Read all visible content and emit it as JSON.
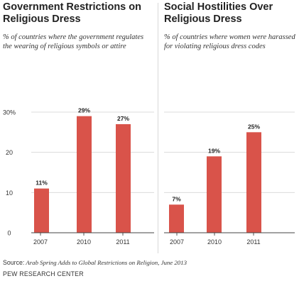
{
  "chart_data": [
    {
      "type": "bar",
      "title": "Government Restrictions on Religious Dress",
      "subtitle": "% of countries where the government regulates the wearing of religious symbols or attire",
      "categories": [
        "2007",
        "2010",
        "2011"
      ],
      "values": [
        11,
        29,
        27
      ],
      "value_labels": [
        "11%",
        "29%",
        "27%"
      ],
      "ylim": [
        0,
        30
      ],
      "yticks": [
        0,
        10,
        20,
        30
      ],
      "ytick_labels": [
        "0",
        "10",
        "20",
        "30%"
      ],
      "grid": true,
      "bar_color": "#d9534a",
      "grid_color": "#dcdcdc"
    },
    {
      "type": "bar",
      "title": "Social Hostilities Over Religious Dress",
      "subtitle": "% of countries where women were harassed for violating religious dress codes",
      "categories": [
        "2007",
        "2010",
        "2011"
      ],
      "values": [
        7,
        19,
        25
      ],
      "value_labels": [
        "7%",
        "19%",
        "25%"
      ],
      "ylim": [
        0,
        30
      ],
      "yticks": [
        0,
        10,
        20,
        30
      ],
      "grid": true,
      "bar_color": "#d9534a",
      "grid_color": "#dcdcdc"
    }
  ],
  "source": {
    "label": "Source:",
    "text": "Arab Spring Adds to Global Restrictions on Religion, June 2013"
  },
  "credit": "PEW RESEARCH CENTER"
}
